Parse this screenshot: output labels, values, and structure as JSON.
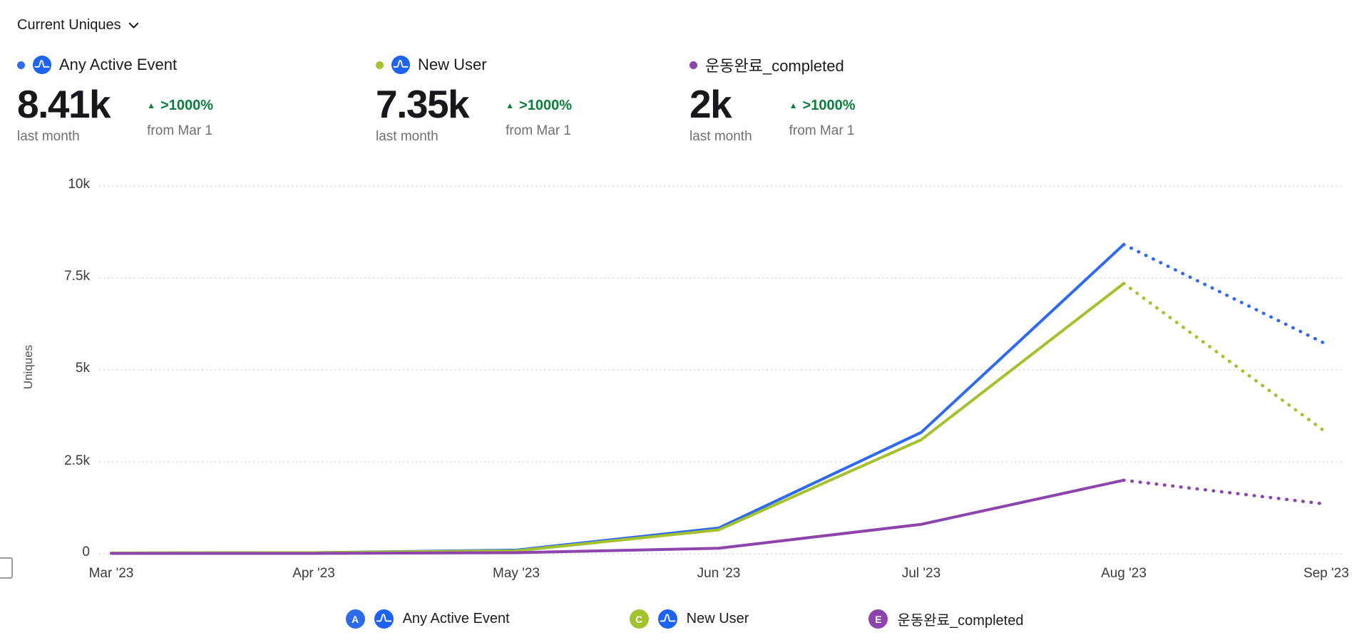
{
  "header": {
    "metric_selector": "Current Uniques"
  },
  "icons": {
    "trend_up": "▲"
  },
  "colors": {
    "series_blue": "#2f6aed",
    "series_green": "#a3c22d",
    "series_purple": "#8e44ad",
    "positive_change": "#0c7d3e",
    "amplitude_brand": "#1e62f0"
  },
  "summary_cards": [
    {
      "name": "Any Active Event",
      "value": "8.41k",
      "value_caption": "last month",
      "change": ">1000%",
      "change_caption": "from Mar 1",
      "color": "#2f6aed",
      "has_amplitude_icon": true
    },
    {
      "name": "New User",
      "value": "7.35k",
      "value_caption": "last month",
      "change": ">1000%",
      "change_caption": "from Mar 1",
      "color": "#a3c22d",
      "has_amplitude_icon": true
    },
    {
      "name": "운동완료_completed",
      "value": "2k",
      "value_caption": "last month",
      "change": ">1000%",
      "change_caption": "from Mar 1",
      "color": "#8e44ad",
      "has_amplitude_icon": false
    }
  ],
  "chart_data": {
    "type": "line",
    "title": "",
    "xlabel": "",
    "ylabel": "Uniques",
    "x_labels": [
      "Mar '23",
      "Apr '23",
      "May '23",
      "Jun '23",
      "Jul '23",
      "Aug '23",
      "Sep '23"
    ],
    "y_ticks": [
      "10k",
      "7.5k",
      "5k",
      "2.5k",
      "0"
    ],
    "y_tick_values": [
      10000,
      7500,
      5000,
      2500,
      0
    ],
    "ylim": [
      0,
      10000
    ],
    "grid": "horizontal-dotted",
    "legend_position": "bottom",
    "dashed_note": "final segment (Aug to Sep) is a dotted projection for the incomplete month",
    "series": [
      {
        "name": "Any Active Event",
        "color": "#2f6aed",
        "values": [
          20,
          30,
          100,
          700,
          3300,
          8410,
          5700
        ],
        "dashed_from_index": 5
      },
      {
        "name": "New User",
        "color": "#a3c22d",
        "values": [
          20,
          30,
          80,
          650,
          3100,
          7350,
          3300
        ],
        "dashed_from_index": 5
      },
      {
        "name": "운동완료_completed",
        "color": "#8e44ad",
        "values": [
          10,
          10,
          30,
          150,
          800,
          2000,
          1350
        ],
        "dashed_from_index": 5
      }
    ]
  },
  "legend": [
    {
      "letter": "A",
      "label": "Any Active Event",
      "color": "#2f6aed",
      "has_amplitude_icon": true
    },
    {
      "letter": "C",
      "label": "New User",
      "color": "#a3c22d",
      "has_amplitude_icon": true
    },
    {
      "letter": "E",
      "label": "운동완료_completed",
      "color": "#8e44ad",
      "has_amplitude_icon": false
    }
  ]
}
